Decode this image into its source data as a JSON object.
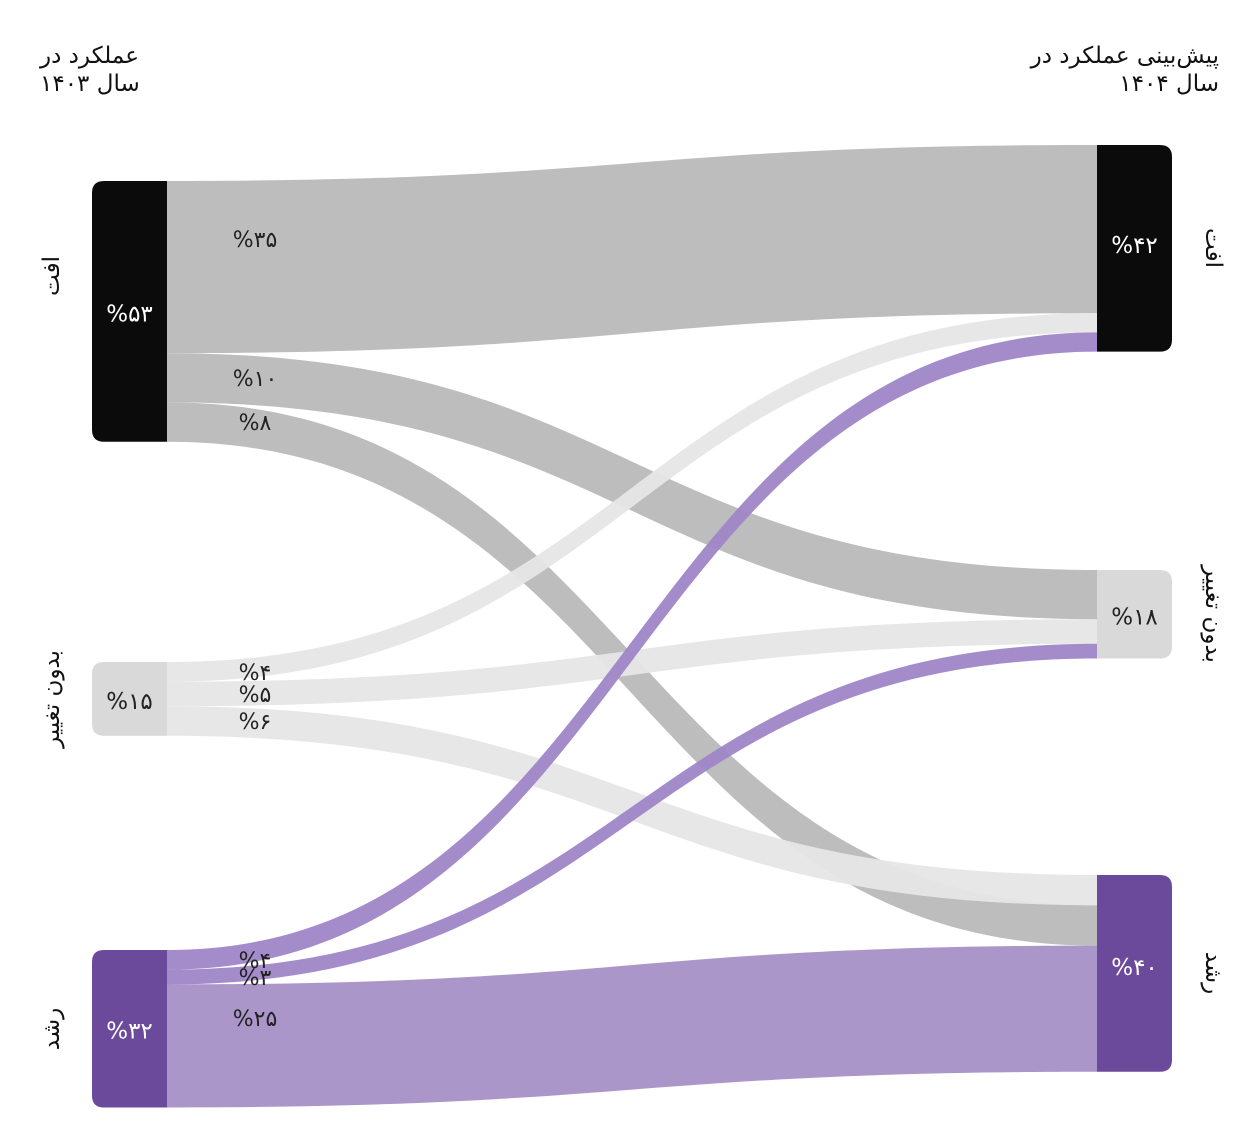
{
  "header_left": {
    "line1": "عملکرد در",
    "line2": "سال ۱۴۰۳"
  },
  "header_right": {
    "line1": "پیش‌بینی عملکرد در",
    "line2": "سال ۱۴۰۴"
  },
  "colors": {
    "decline_node": "#0b0b0b",
    "unchanged_node": "#d9d9d9",
    "growth_node": "#6b4a9b",
    "decline_flow": "#b9b9bb",
    "unchanged_flow": "#e6e6e6",
    "growth_flow": "#a690c6",
    "growth_thin_flow": "#9f86c8"
  },
  "left_nodes": [
    {
      "id": "decline",
      "label": "افت",
      "value_text": "%۵۳",
      "value": 53
    },
    {
      "id": "unchanged",
      "label": "بدون تغییر",
      "value_text": "%۱۵",
      "value": 15
    },
    {
      "id": "growth",
      "label": "رشد",
      "value_text": "%۳۲",
      "value": 32
    }
  ],
  "right_nodes": [
    {
      "id": "decline",
      "label": "افت",
      "value_text": "%۴۲",
      "value": 42
    },
    {
      "id": "unchanged",
      "label": "بدون تغییر",
      "value_text": "%۱۸",
      "value": 18
    },
    {
      "id": "growth",
      "label": "رشد",
      "value_text": "%۴۰",
      "value": 40
    }
  ],
  "flows": [
    {
      "from": "decline",
      "to": "decline",
      "value": 35,
      "value_text": "%۳۵"
    },
    {
      "from": "decline",
      "to": "unchanged",
      "value": 10,
      "value_text": "%۱۰"
    },
    {
      "from": "decline",
      "to": "growth",
      "value": 8,
      "value_text": "%۸"
    },
    {
      "from": "unchanged",
      "to": "decline",
      "value": 4,
      "value_text": "%۴"
    },
    {
      "from": "unchanged",
      "to": "unchanged",
      "value": 5,
      "value_text": "%۵"
    },
    {
      "from": "unchanged",
      "to": "growth",
      "value": 6,
      "value_text": "%۶"
    },
    {
      "from": "growth",
      "to": "decline",
      "value": 4,
      "value_text": "%۴"
    },
    {
      "from": "growth",
      "to": "unchanged",
      "value": 3,
      "value_text": "%۳"
    },
    {
      "from": "growth",
      "to": "growth",
      "value": 25,
      "value_text": "%۲۵"
    }
  ]
}
